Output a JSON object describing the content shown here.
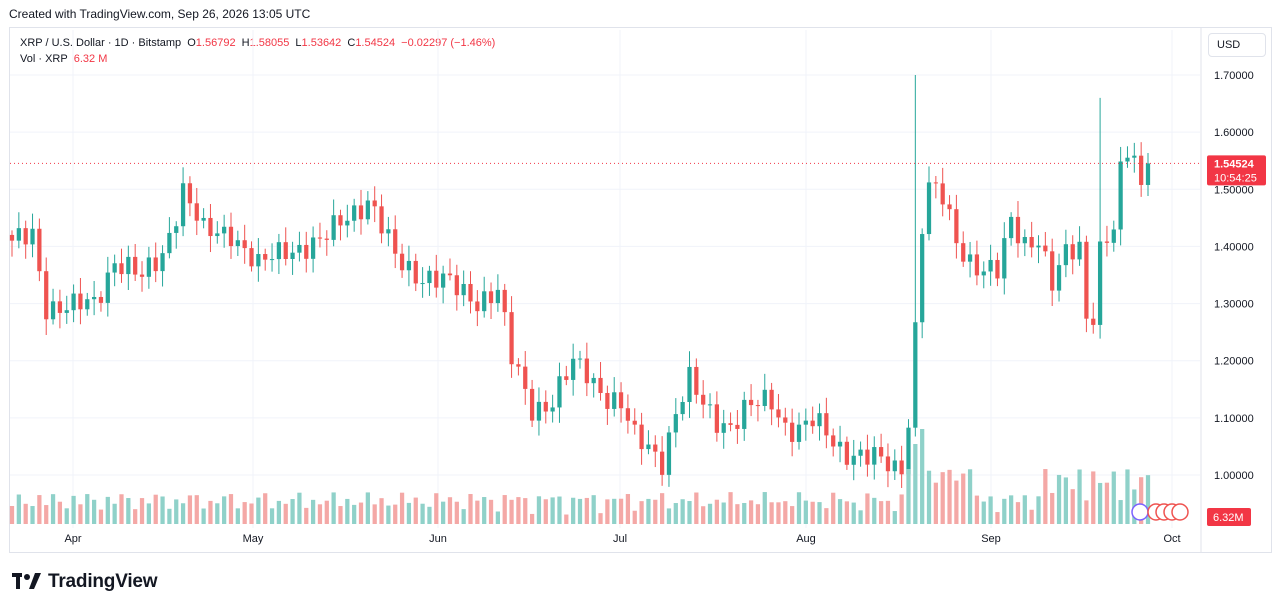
{
  "caption": "Created with TradingView.com, Sep 26, 2026 13:05 UTC",
  "legend": {
    "symbol": "XRP / U.S. Dollar · 1D · Bitstamp",
    "open_label": "O",
    "open": "1.56792",
    "high_label": "H",
    "high": "1.58055",
    "low_label": "L",
    "low": "1.53642",
    "close_label": "C",
    "close": "1.54524",
    "change": "−0.02297 (−1.46%)",
    "vol_label": "Vol · XRP",
    "vol": "6.32 M"
  },
  "currency_button": "USD",
  "price_tag": {
    "price": "1.54524",
    "countdown": "10:54:25"
  },
  "volume_tag": "6.32M",
  "brand": "TradingView",
  "colors": {
    "up": "#26a69a",
    "down": "#ef5350",
    "up_vol": "#8fd1c9",
    "down_vol": "#f4a8a6",
    "tag": "#f23645",
    "grid": "#f0f3fa"
  },
  "chart_data": {
    "type": "candlestick",
    "yaxis_ticks": [
      "1.70000",
      "1.60000",
      "1.50000",
      "1.40000",
      "1.30000",
      "1.20000",
      "1.10000",
      "1.00000"
    ],
    "ylim": [
      0.9,
      1.75
    ],
    "xaxis_ticks": [
      "Apr",
      "May",
      "Jun",
      "Jul",
      "Aug",
      "Sep",
      "Oct"
    ],
    "last_price": 1.54524,
    "anchors": [
      [
        0,
        1.4
      ],
      [
        3,
        1.42
      ],
      [
        5,
        1.3
      ],
      [
        9,
        1.29
      ],
      [
        12,
        1.3
      ],
      [
        15,
        1.38
      ],
      [
        19,
        1.34
      ],
      [
        22,
        1.39
      ],
      [
        25,
        1.5
      ],
      [
        28,
        1.42
      ],
      [
        32,
        1.43
      ],
      [
        36,
        1.36
      ],
      [
        40,
        1.4
      ],
      [
        45,
        1.4
      ],
      [
        49,
        1.46
      ],
      [
        52,
        1.48
      ],
      [
        56,
        1.38
      ],
      [
        60,
        1.35
      ],
      [
        64,
        1.33
      ],
      [
        68,
        1.31
      ],
      [
        71,
        1.32
      ],
      [
        73,
        1.2
      ],
      [
        76,
        1.12
      ],
      [
        79,
        1.13
      ],
      [
        82,
        1.19
      ],
      [
        84,
        1.18
      ],
      [
        87,
        1.14
      ],
      [
        89,
        1.12
      ],
      [
        91,
        1.06
      ],
      [
        93,
        1.05
      ],
      [
        95,
        1.03
      ],
      [
        97,
        1.11
      ],
      [
        99,
        1.16
      ],
      [
        101,
        1.12
      ],
      [
        103,
        1.1
      ],
      [
        105,
        1.09
      ],
      [
        107,
        1.11
      ],
      [
        109,
        1.12
      ],
      [
        111,
        1.13
      ],
      [
        113,
        1.09
      ],
      [
        115,
        1.08
      ],
      [
        117,
        1.09
      ],
      [
        119,
        1.07
      ],
      [
        121,
        1.05
      ],
      [
        123,
        1.04
      ],
      [
        125,
        1.03
      ],
      [
        127,
        1.02
      ],
      [
        129,
        1.01
      ],
      [
        130,
        1.02
      ],
      [
        131,
        1.1
      ],
      [
        132,
        1.26
      ],
      [
        133,
        1.44
      ],
      [
        134,
        1.5
      ],
      [
        136,
        1.48
      ],
      [
        138,
        1.41
      ],
      [
        140,
        1.38
      ],
      [
        142,
        1.36
      ],
      [
        144,
        1.35
      ],
      [
        146,
        1.44
      ],
      [
        148,
        1.41
      ],
      [
        150,
        1.42
      ],
      [
        152,
        1.33
      ],
      [
        154,
        1.38
      ],
      [
        156,
        1.4
      ],
      [
        157,
        1.28
      ],
      [
        158,
        1.29
      ],
      [
        159,
        1.4
      ],
      [
        161,
        1.43
      ],
      [
        162,
        1.52
      ],
      [
        163,
        1.56
      ],
      [
        164,
        1.55
      ],
      [
        165,
        1.5
      ],
      [
        166,
        1.55
      ]
    ],
    "series_note_candles": 167
  }
}
